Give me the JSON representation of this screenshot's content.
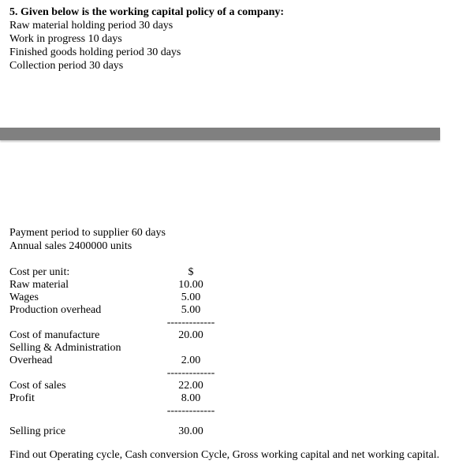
{
  "question": {
    "header": "5. Given below is the working capital policy of a company:",
    "policies": [
      "Raw material holding period 30 days",
      "Work in progress  10 days",
      "Finished goods holding period 30 days",
      "Collection period 30 days"
    ],
    "additional": [
      "Payment period to supplier 60 days",
      "Annual sales 2400000 units"
    ]
  },
  "cost_table": {
    "currency_symbol": "$",
    "rows": {
      "cost_per_unit_label": "Cost per unit:",
      "raw_material_label": "Raw material",
      "raw_material_value": "10.00",
      "wages_label": "Wages",
      "wages_value": "5.00",
      "prod_overhead_label": "Production overhead",
      "prod_overhead_value": "5.00",
      "cost_manufacture_label": "Cost of manufacture",
      "cost_manufacture_value": "20.00",
      "selling_admin_label": "Selling & Administration",
      "overhead_label": "Overhead",
      "overhead_value": "2.00",
      "cost_sales_label": "Cost of sales",
      "cost_sales_value": "22.00",
      "profit_label": "Profit",
      "profit_value": "8.00",
      "selling_price_label": "Selling price",
      "selling_price_value": "30.00"
    },
    "separator": "-------------"
  },
  "final_question": "Find out Operating cycle, Cash conversion Cycle, Gross working capital and net working capital."
}
